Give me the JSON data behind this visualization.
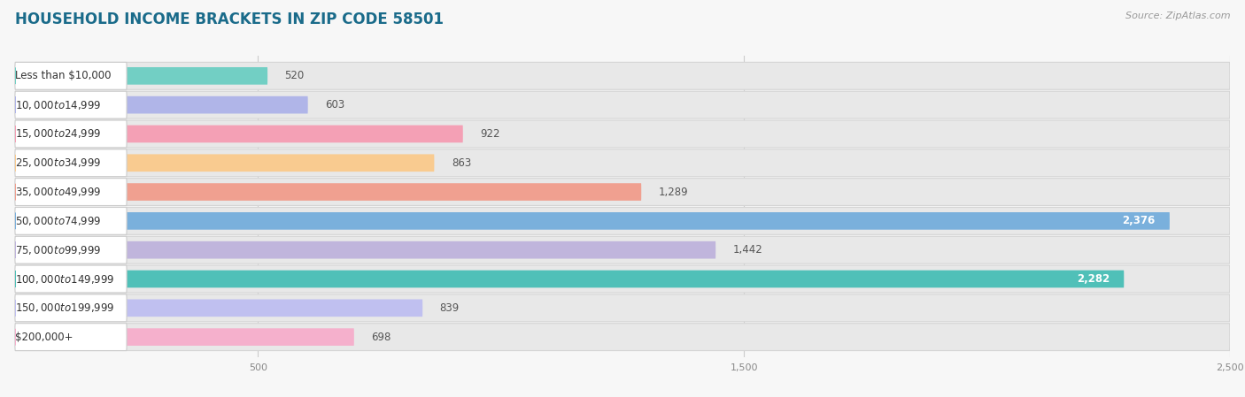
{
  "title": "HOUSEHOLD INCOME BRACKETS IN ZIP CODE 58501",
  "source": "Source: ZipAtlas.com",
  "categories": [
    "Less than $10,000",
    "$10,000 to $14,999",
    "$15,000 to $24,999",
    "$25,000 to $34,999",
    "$35,000 to $49,999",
    "$50,000 to $74,999",
    "$75,000 to $99,999",
    "$100,000 to $149,999",
    "$150,000 to $199,999",
    "$200,000+"
  ],
  "values": [
    520,
    603,
    922,
    863,
    1289,
    2376,
    1442,
    2282,
    839,
    698
  ],
  "value_labels": [
    "520",
    "603",
    "922",
    "863",
    "1,289",
    "2,376",
    "1,442",
    "2,282",
    "839",
    "698"
  ],
  "value_inside": [
    false,
    false,
    false,
    false,
    false,
    true,
    false,
    true,
    false,
    false
  ],
  "bar_colors": [
    "#72cfc4",
    "#b0b5e8",
    "#f4a0b5",
    "#f9cb90",
    "#f0a090",
    "#7ab0dc",
    "#c0b5dc",
    "#50c0b8",
    "#c0c0f0",
    "#f5b0cc"
  ],
  "background_color": "#f7f7f7",
  "bar_bg_color": "#e8e8e8",
  "bar_bg_border": "#d5d5d5",
  "xlim": [
    0,
    2500
  ],
  "xticks": [
    500,
    1500,
    2500
  ],
  "xtick_labels": [
    "500",
    "1,500",
    "2,500"
  ],
  "title_fontsize": 12,
  "label_fontsize": 8.5,
  "value_fontsize": 8.5,
  "source_fontsize": 8
}
